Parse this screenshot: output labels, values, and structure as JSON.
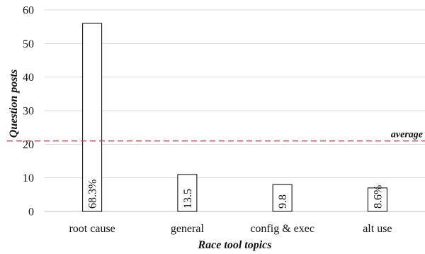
{
  "chart_data": {
    "type": "bar",
    "title": "",
    "xlabel": "Race tool topics",
    "ylabel": "Question posts",
    "categories": [
      "root cause",
      "general",
      "config & exec",
      "alt use"
    ],
    "values": [
      56,
      11,
      8,
      7
    ],
    "data_labels": [
      "68.3%",
      "13.5",
      "9.8",
      "8.6%"
    ],
    "ylim": [
      0,
      60
    ],
    "yticks": [
      "0",
      "10",
      "20",
      "30",
      "40",
      "50",
      "60"
    ],
    "grid": true,
    "reference_line": {
      "label": "average",
      "value": 21,
      "color": "#c0504d",
      "style": "dashed"
    },
    "bar_fill": "#ffffff",
    "bar_stroke": "#000000",
    "grid_color": "#d9d9d9",
    "axis_color": "#bfbfbf"
  }
}
